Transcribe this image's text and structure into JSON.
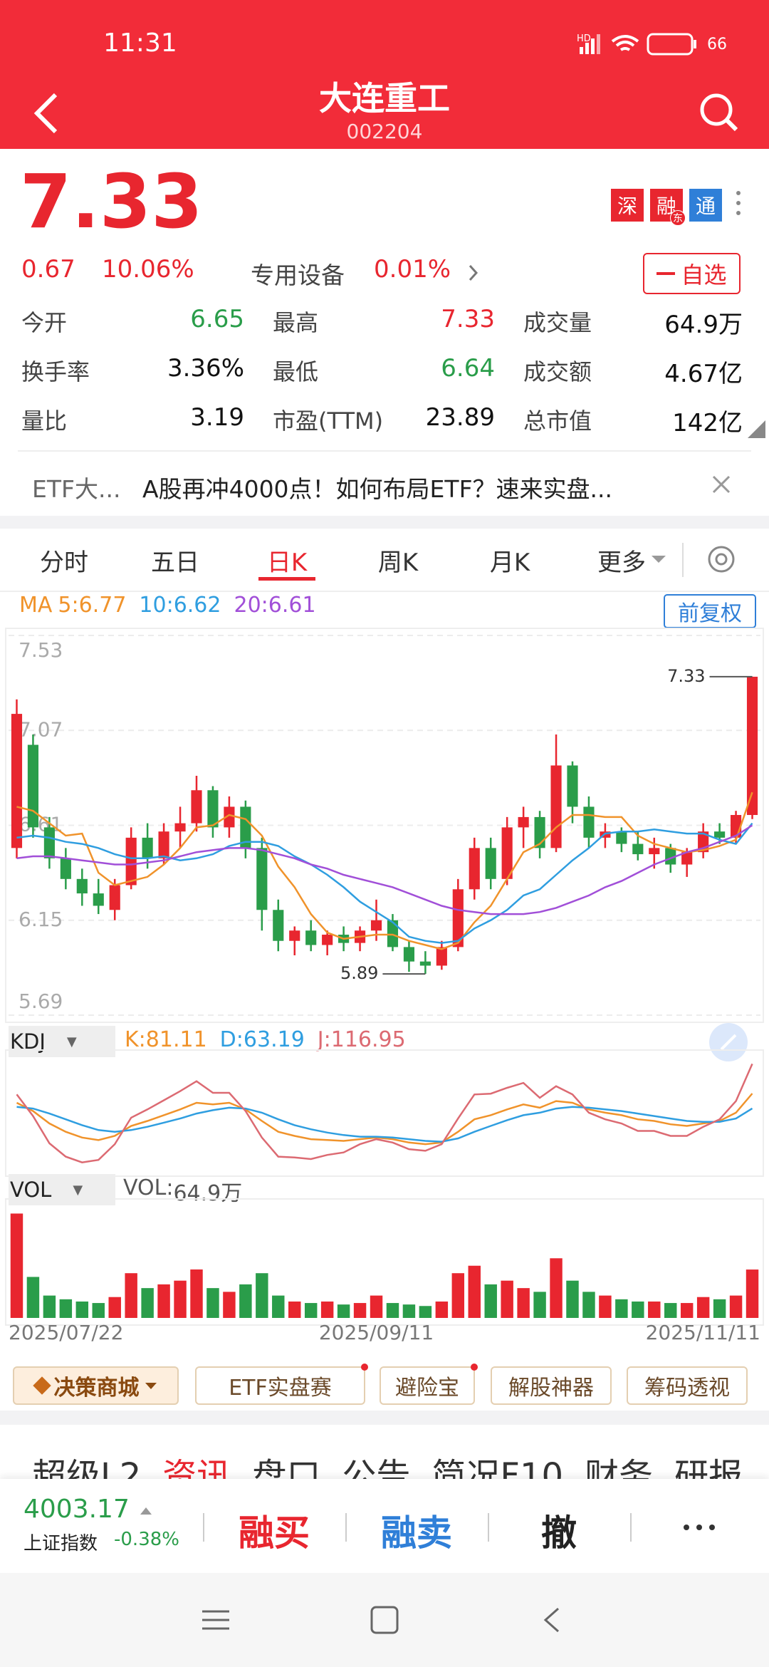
{
  "status_bar": {
    "time": "11:31",
    "battery": "66"
  },
  "header": {
    "title": "大连重工",
    "code": "002204"
  },
  "quote": {
    "price": "7.33",
    "change": "0.67",
    "change_pct": "10.06%",
    "sector": "专用设备",
    "sector_pct": "0.01%",
    "badges": [
      "深",
      "融",
      "通"
    ],
    "badge_sub": "东",
    "watch": "自选",
    "stats": [
      {
        "label": "今开",
        "value": "6.65",
        "color": "#2a9d4a"
      },
      {
        "label": "最高",
        "value": "7.33",
        "color": "#e8262f"
      },
      {
        "label": "成交量",
        "value": "64.9万"
      },
      {
        "label": "换手率",
        "value": "3.36%"
      },
      {
        "label": "最低",
        "value": "6.64",
        "color": "#2a9d4a"
      },
      {
        "label": "成交额",
        "value": "4.67亿"
      },
      {
        "label": "量比",
        "value": "3.19"
      },
      {
        "label": "市盈(TTM)",
        "value": "23.89"
      },
      {
        "label": "总市值",
        "value": "142亿"
      }
    ]
  },
  "banner": {
    "tag": "ETF大...",
    "text": "A股再冲4000点！如何布局ETF？速来实盘..."
  },
  "period_tabs": [
    "分时",
    "五日",
    "日K",
    "周K",
    "月K",
    "更多"
  ],
  "active_tab": 2,
  "chart_data": [
    {
      "type": "candlestick",
      "legend_prefix": "MA",
      "adjust": "前复权",
      "up_color": "#e8262f",
      "down_color": "#2a9d4a",
      "ylim": [
        5.69,
        7.53
      ],
      "yticks": [
        7.53,
        7.07,
        6.61,
        6.15,
        5.69
      ],
      "grid": true,
      "ohlc": [
        [
          6.5,
          7.22,
          6.45,
          7.15
        ],
        [
          7.0,
          7.05,
          6.55,
          6.6
        ],
        [
          6.6,
          6.65,
          6.4,
          6.45
        ],
        [
          6.45,
          6.5,
          6.3,
          6.35
        ],
        [
          6.35,
          6.4,
          6.22,
          6.28
        ],
        [
          6.28,
          6.35,
          6.18,
          6.22
        ],
        [
          6.2,
          6.35,
          6.15,
          6.32
        ],
        [
          6.32,
          6.6,
          6.3,
          6.55
        ],
        [
          6.55,
          6.62,
          6.4,
          6.45
        ],
        [
          6.45,
          6.62,
          6.42,
          6.58
        ],
        [
          6.58,
          6.7,
          6.5,
          6.62
        ],
        [
          6.62,
          6.85,
          6.58,
          6.78
        ],
        [
          6.78,
          6.8,
          6.55,
          6.6
        ],
        [
          6.6,
          6.75,
          6.55,
          6.7
        ],
        [
          6.7,
          6.73,
          6.45,
          6.5
        ],
        [
          6.5,
          6.55,
          6.1,
          6.2
        ],
        [
          6.2,
          6.25,
          6.0,
          6.05
        ],
        [
          6.05,
          6.12,
          5.98,
          6.1
        ],
        [
          6.1,
          6.15,
          6.0,
          6.03
        ],
        [
          6.03,
          6.1,
          5.98,
          6.08
        ],
        [
          6.08,
          6.12,
          6.0,
          6.04
        ],
        [
          6.04,
          6.12,
          6.0,
          6.1
        ],
        [
          6.1,
          6.25,
          6.05,
          6.15
        ],
        [
          6.15,
          6.18,
          6.0,
          6.02
        ],
        [
          6.02,
          6.05,
          5.9,
          5.95
        ],
        [
          5.95,
          6.0,
          5.89,
          5.93
        ],
        [
          5.93,
          6.05,
          5.91,
          6.02
        ],
        [
          6.02,
          6.35,
          6.0,
          6.3
        ],
        [
          6.3,
          6.55,
          6.25,
          6.5
        ],
        [
          6.5,
          6.55,
          6.3,
          6.35
        ],
        [
          6.35,
          6.65,
          6.32,
          6.6
        ],
        [
          6.6,
          6.7,
          6.5,
          6.65
        ],
        [
          6.65,
          6.68,
          6.45,
          6.5
        ],
        [
          6.5,
          7.05,
          6.48,
          6.9
        ],
        [
          6.9,
          6.92,
          6.62,
          6.7
        ],
        [
          6.7,
          6.75,
          6.5,
          6.55
        ],
        [
          6.55,
          6.62,
          6.5,
          6.58
        ],
        [
          6.58,
          6.6,
          6.48,
          6.52
        ],
        [
          6.52,
          6.58,
          6.44,
          6.47
        ],
        [
          6.47,
          6.55,
          6.4,
          6.5
        ],
        [
          6.5,
          6.52,
          6.38,
          6.42
        ],
        [
          6.42,
          6.5,
          6.36,
          6.48
        ],
        [
          6.48,
          6.62,
          6.45,
          6.58
        ],
        [
          6.58,
          6.62,
          6.52,
          6.55
        ],
        [
          6.55,
          6.68,
          6.52,
          6.66
        ],
        [
          6.66,
          7.33,
          6.64,
          7.33
        ]
      ],
      "series": [
        {
          "name": "5:",
          "color": "#f0932b",
          "values": [
            6.7,
            6.68,
            6.62,
            6.56,
            6.57,
            6.38,
            6.32,
            6.34,
            6.36,
            6.42,
            6.5,
            6.6,
            6.61,
            6.66,
            6.64,
            6.56,
            6.41,
            6.31,
            6.18,
            6.09,
            6.06,
            6.07,
            6.08,
            6.08,
            6.05,
            6.03,
            6.01,
            6.04,
            6.14,
            6.22,
            6.35,
            6.48,
            6.52,
            6.6,
            6.66,
            6.66,
            6.65,
            6.65,
            6.56,
            6.52,
            6.5,
            6.48,
            6.49,
            6.51,
            6.54,
            6.77
          ]
        },
        {
          "name": "10:",
          "color": "#2f9ee0",
          "values": [
            6.55,
            6.56,
            6.55,
            6.53,
            6.52,
            6.5,
            6.47,
            6.45,
            6.45,
            6.46,
            6.44,
            6.45,
            6.47,
            6.51,
            6.53,
            6.53,
            6.51,
            6.46,
            6.42,
            6.37,
            6.31,
            6.24,
            6.19,
            6.14,
            6.07,
            6.05,
            6.04,
            6.05,
            6.11,
            6.15,
            6.2,
            6.27,
            6.3,
            6.37,
            6.44,
            6.5,
            6.57,
            6.58,
            6.58,
            6.59,
            6.58,
            6.57,
            6.57,
            6.54,
            6.52,
            6.62
          ]
        },
        {
          "name": "20:",
          "color": "#a14fd8",
          "values": [
            6.45,
            6.46,
            6.46,
            6.45,
            6.44,
            6.43,
            6.42,
            6.42,
            6.43,
            6.44,
            6.46,
            6.48,
            6.49,
            6.5,
            6.5,
            6.49,
            6.47,
            6.45,
            6.42,
            6.4,
            6.37,
            6.35,
            6.33,
            6.31,
            6.28,
            6.25,
            6.22,
            6.2,
            6.19,
            6.18,
            6.18,
            6.18,
            6.19,
            6.21,
            6.24,
            6.27,
            6.31,
            6.34,
            6.38,
            6.42,
            6.45,
            6.48,
            6.5,
            6.53,
            6.56,
            6.61
          ]
        }
      ]
    },
    {
      "type": "line",
      "title": "KDJ",
      "ylim": [
        -10,
        125
      ],
      "series": [
        {
          "name": "K:",
          "color": "#f0932b",
          "values": [
            70,
            60,
            45,
            35,
            28,
            25,
            30,
            42,
            48,
            55,
            62,
            70,
            68,
            70,
            62,
            48,
            35,
            30,
            26,
            25,
            24,
            26,
            28,
            26,
            22,
            20,
            22,
            35,
            50,
            55,
            62,
            68,
            64,
            72,
            70,
            62,
            58,
            55,
            50,
            48,
            44,
            42,
            45,
            48,
            58,
            81.11
          ]
        },
        {
          "name": "D:",
          "color": "#2f9ee0",
          "values": [
            65,
            63,
            57,
            50,
            43,
            37,
            35,
            37,
            41,
            46,
            51,
            57,
            61,
            64,
            63,
            58,
            50,
            43,
            38,
            34,
            31,
            29,
            29,
            28,
            26,
            24,
            23,
            27,
            35,
            42,
            49,
            55,
            58,
            63,
            65,
            64,
            62,
            60,
            57,
            54,
            51,
            48,
            47,
            47,
            51,
            63.19
          ]
        },
        {
          "name": "J:",
          "color": "#dc6a72",
          "values": [
            80,
            54,
            21,
            5,
            -2,
            1,
            20,
            52,
            62,
            73,
            84,
            96,
            82,
            82,
            60,
            28,
            5,
            4,
            2,
            7,
            10,
            20,
            26,
            22,
            14,
            12,
            20,
            51,
            80,
            81,
            88,
            94,
            76,
            90,
            80,
            58,
            50,
            45,
            36,
            36,
            30,
            30,
            41,
            50,
            72,
            116.95
          ]
        }
      ]
    },
    {
      "type": "bar",
      "title": "VOL",
      "up_color": "#e8262f",
      "down_color": "#2a9d4a",
      "ylim": [
        0,
        150
      ],
      "categories": [
        "2025/07/22",
        null,
        null,
        null,
        null,
        null,
        null,
        null,
        null,
        null,
        null,
        null,
        null,
        null,
        null,
        null,
        null,
        null,
        null,
        null,
        null,
        null,
        "2025/09/11",
        null,
        null,
        null,
        null,
        null,
        null,
        null,
        null,
        null,
        null,
        null,
        null,
        null,
        null,
        null,
        null,
        null,
        null,
        null,
        null,
        null,
        null,
        "2025/11/11"
      ],
      "series": [
        {
          "name": "VOL:",
          "values": [
            140,
            55,
            30,
            25,
            22,
            20,
            28,
            60,
            40,
            45,
            50,
            65,
            40,
            35,
            45,
            60,
            30,
            22,
            20,
            22,
            18,
            20,
            30,
            20,
            18,
            16,
            22,
            60,
            70,
            45,
            50,
            40,
            35,
            80,
            50,
            35,
            30,
            25,
            22,
            22,
            20,
            20,
            28,
            25,
            30,
            64.9
          ],
          "value_labels": [
            null,
            null,
            null,
            null,
            null,
            null,
            null,
            null,
            null,
            null,
            null,
            null,
            null,
            null,
            null,
            null,
            null,
            null,
            null,
            null,
            null,
            null,
            null,
            null,
            null,
            null,
            null,
            null,
            null,
            null,
            null,
            null,
            null,
            null,
            null,
            null,
            null,
            null,
            null,
            null,
            null,
            null,
            null,
            null,
            null,
            "64.9万"
          ]
        }
      ]
    }
  ],
  "tools": [
    "决策商城",
    "ETF实盘赛",
    "避险宝",
    "解股神器",
    "筹码透视"
  ],
  "section_tabs": [
    "超级L2",
    "资讯",
    "盘口",
    "公告",
    "简况F10",
    "财务",
    "研报"
  ],
  "active_section": 1,
  "bottom_bar": {
    "index_value": "4003.17",
    "index_name": "上证指数",
    "index_change": "-0.38%",
    "actions": [
      "融买",
      "融卖",
      "撤"
    ]
  }
}
